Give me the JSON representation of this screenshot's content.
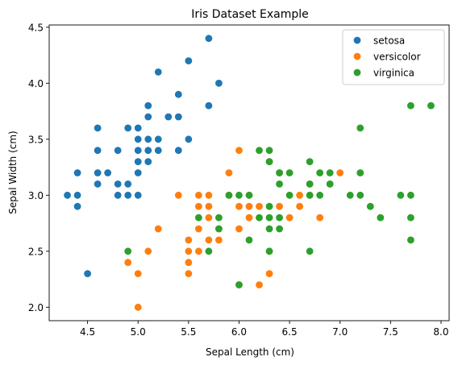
{
  "chart_data": {
    "type": "scatter",
    "title": "Iris Dataset Example",
    "xlabel": "Sepal Length (cm)",
    "ylabel": "Sepal Width (cm)",
    "xlim": [
      4.12,
      8.08
    ],
    "ylim": [
      1.88,
      4.52
    ],
    "xticks": [
      4.5,
      5.0,
      5.5,
      6.0,
      6.5,
      7.0,
      7.5,
      8.0
    ],
    "xtick_labels": [
      "4.5",
      "5.0",
      "5.5",
      "6.0",
      "6.5",
      "7.0",
      "7.5",
      "8.0"
    ],
    "yticks": [
      2.0,
      2.5,
      3.0,
      3.5,
      4.0,
      4.5
    ],
    "ytick_labels": [
      "2.0",
      "2.5",
      "3.0",
      "3.5",
      "4.0",
      "4.5"
    ],
    "grid": false,
    "legend_position": "top-right",
    "series": [
      {
        "name": "setosa",
        "color": "#1f77b4",
        "points": [
          [
            4.3,
            3.0
          ],
          [
            4.4,
            2.9
          ],
          [
            4.4,
            3.0
          ],
          [
            4.4,
            3.2
          ],
          [
            4.5,
            2.3
          ],
          [
            4.6,
            3.1
          ],
          [
            4.6,
            3.2
          ],
          [
            4.6,
            3.4
          ],
          [
            4.6,
            3.6
          ],
          [
            4.7,
            3.2
          ],
          [
            4.8,
            3.0
          ],
          [
            4.8,
            3.1
          ],
          [
            4.8,
            3.4
          ],
          [
            4.9,
            3.0
          ],
          [
            4.9,
            3.1
          ],
          [
            4.9,
            3.6
          ],
          [
            5.0,
            3.0
          ],
          [
            5.0,
            3.2
          ],
          [
            5.0,
            3.3
          ],
          [
            5.0,
            3.4
          ],
          [
            5.0,
            3.5
          ],
          [
            5.0,
            3.6
          ],
          [
            5.1,
            3.3
          ],
          [
            5.1,
            3.4
          ],
          [
            5.1,
            3.5
          ],
          [
            5.1,
            3.7
          ],
          [
            5.1,
            3.8
          ],
          [
            5.2,
            3.4
          ],
          [
            5.2,
            3.5
          ],
          [
            5.2,
            4.1
          ],
          [
            5.3,
            3.7
          ],
          [
            5.4,
            3.4
          ],
          [
            5.4,
            3.7
          ],
          [
            5.4,
            3.9
          ],
          [
            5.5,
            3.5
          ],
          [
            5.5,
            4.2
          ],
          [
            5.7,
            3.8
          ],
          [
            5.7,
            4.4
          ],
          [
            5.8,
            4.0
          ]
        ]
      },
      {
        "name": "versicolor",
        "color": "#ff7f0e",
        "points": [
          [
            4.9,
            2.4
          ],
          [
            5.0,
            2.0
          ],
          [
            5.0,
            2.3
          ],
          [
            5.1,
            2.5
          ],
          [
            5.2,
            2.7
          ],
          [
            5.4,
            3.0
          ],
          [
            5.5,
            2.3
          ],
          [
            5.5,
            2.4
          ],
          [
            5.5,
            2.5
          ],
          [
            5.5,
            2.6
          ],
          [
            5.6,
            2.5
          ],
          [
            5.6,
            2.7
          ],
          [
            5.6,
            2.9
          ],
          [
            5.6,
            3.0
          ],
          [
            5.7,
            2.6
          ],
          [
            5.7,
            2.8
          ],
          [
            5.7,
            2.9
          ],
          [
            5.7,
            3.0
          ],
          [
            5.8,
            2.6
          ],
          [
            5.8,
            2.7
          ],
          [
            5.9,
            3.0
          ],
          [
            5.9,
            3.2
          ],
          [
            6.0,
            2.2
          ],
          [
            6.0,
            2.7
          ],
          [
            6.0,
            2.9
          ],
          [
            6.0,
            3.4
          ],
          [
            6.1,
            2.8
          ],
          [
            6.1,
            2.9
          ],
          [
            6.1,
            3.0
          ],
          [
            6.2,
            2.2
          ],
          [
            6.2,
            2.9
          ],
          [
            6.3,
            2.3
          ],
          [
            6.3,
            2.5
          ],
          [
            6.3,
            3.3
          ],
          [
            6.4,
            2.9
          ],
          [
            6.4,
            3.2
          ],
          [
            6.5,
            2.8
          ],
          [
            6.6,
            2.9
          ],
          [
            6.6,
            3.0
          ],
          [
            6.7,
            3.0
          ],
          [
            6.7,
            3.1
          ],
          [
            6.8,
            2.8
          ],
          [
            6.9,
            3.1
          ],
          [
            7.0,
            3.2
          ]
        ]
      },
      {
        "name": "virginica",
        "color": "#2ca02c",
        "points": [
          [
            4.9,
            2.5
          ],
          [
            5.6,
            2.8
          ],
          [
            5.7,
            2.5
          ],
          [
            5.8,
            2.7
          ],
          [
            5.8,
            2.8
          ],
          [
            5.9,
            3.0
          ],
          [
            6.0,
            2.2
          ],
          [
            6.0,
            3.0
          ],
          [
            6.1,
            2.6
          ],
          [
            6.1,
            3.0
          ],
          [
            6.2,
            2.8
          ],
          [
            6.2,
            3.4
          ],
          [
            6.3,
            2.5
          ],
          [
            6.3,
            2.7
          ],
          [
            6.3,
            2.8
          ],
          [
            6.3,
            2.9
          ],
          [
            6.3,
            3.3
          ],
          [
            6.3,
            3.4
          ],
          [
            6.4,
            2.7
          ],
          [
            6.4,
            2.8
          ],
          [
            6.4,
            3.1
          ],
          [
            6.4,
            3.2
          ],
          [
            6.5,
            3.0
          ],
          [
            6.5,
            3.2
          ],
          [
            6.7,
            2.5
          ],
          [
            6.7,
            3.0
          ],
          [
            6.7,
            3.1
          ],
          [
            6.7,
            3.3
          ],
          [
            6.8,
            3.0
          ],
          [
            6.8,
            3.2
          ],
          [
            6.9,
            3.1
          ],
          [
            6.9,
            3.2
          ],
          [
            7.1,
            3.0
          ],
          [
            7.2,
            3.0
          ],
          [
            7.2,
            3.2
          ],
          [
            7.2,
            3.6
          ],
          [
            7.3,
            2.9
          ],
          [
            7.4,
            2.8
          ],
          [
            7.6,
            3.0
          ],
          [
            7.7,
            2.6
          ],
          [
            7.7,
            2.8
          ],
          [
            7.7,
            3.0
          ],
          [
            7.7,
            3.8
          ],
          [
            7.9,
            3.8
          ]
        ]
      }
    ]
  }
}
